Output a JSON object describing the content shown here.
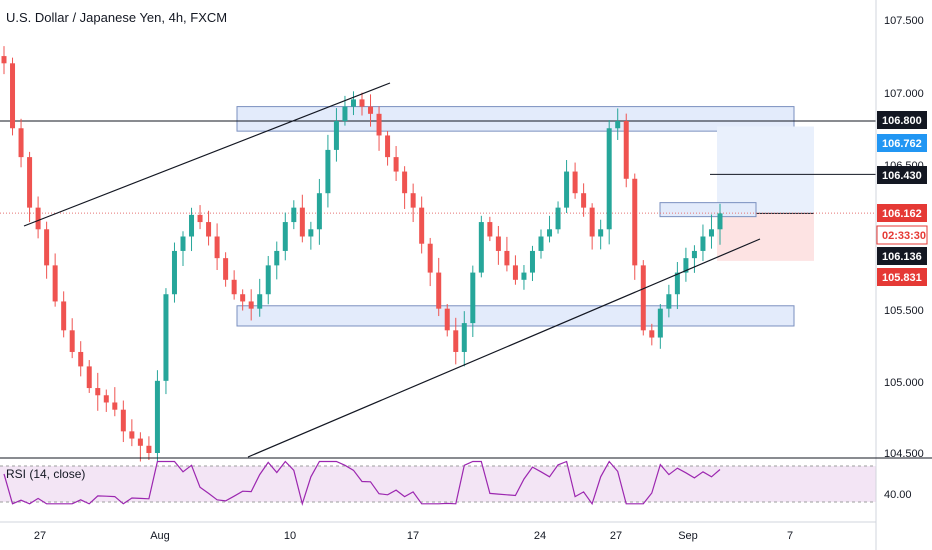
{
  "header": {
    "title": "U.S. Dollar / Japanese Yen, 4h, FXCM"
  },
  "rsi": {
    "label": "RSI (14, close)",
    "levels": [
      30,
      70
    ]
  },
  "colors": {
    "bull": "#26a69a",
    "bear": "#ef5350",
    "rsi_line": "#9c27b0",
    "rsi_band": "#f3e5f5",
    "zone": "#e3ebfb",
    "zone_border": "#7a8fbf",
    "price_tag_red": "#e53935",
    "price_tag_blue": "#2196f3",
    "tag_black": "#131722",
    "target_zone": "#e9f0fc",
    "stop_zone": "#fde3e3"
  },
  "price_axis": {
    "labels": [
      "107.500",
      "107.000",
      "106.500",
      "105.500",
      "105.000",
      "104.500"
    ],
    "tags": [
      {
        "text": "106.800",
        "style": "black"
      },
      {
        "text": "106.762",
        "style": "blue"
      },
      {
        "text": "106.430",
        "style": "black"
      },
      {
        "text": "106.162",
        "style": "red"
      },
      {
        "text": "02:33:30",
        "style": "red"
      },
      {
        "text": "106.136",
        "style": "black"
      },
      {
        "text": "105.831",
        "style": "red"
      }
    ]
  },
  "rsi_axis": {
    "labels": [
      "40.00"
    ]
  },
  "time_axis": {
    "labels": [
      "27",
      "Aug",
      "10",
      "17",
      "24",
      "27",
      "Sep",
      "7"
    ]
  },
  "chart_data": {
    "type": "candlestick",
    "symbol": "USDJPY",
    "interval": "4h",
    "ylim": [
      104.45,
      107.6
    ],
    "close_series": [
      107.2,
      106.75,
      106.55,
      106.2,
      106.05,
      105.8,
      105.55,
      105.35,
      105.2,
      105.1,
      104.95,
      104.9,
      104.85,
      104.8,
      104.65,
      104.6,
      104.55,
      104.5,
      105.0,
      105.6,
      105.9,
      106.0,
      106.15,
      106.1,
      106.0,
      105.85,
      105.7,
      105.6,
      105.55,
      105.5,
      105.6,
      105.8,
      105.9,
      106.1,
      106.2,
      106.0,
      106.05,
      106.3,
      106.6,
      106.8,
      106.9,
      106.95,
      106.9,
      106.85,
      106.7,
      106.55,
      106.45,
      106.3,
      106.2,
      105.95,
      105.75,
      105.5,
      105.35,
      105.2,
      105.4,
      105.75,
      106.1,
      106.0,
      105.9,
      105.8,
      105.7,
      105.75,
      105.9,
      106.0,
      106.05,
      106.2,
      106.45,
      106.3,
      106.2,
      106.0,
      106.05,
      106.75,
      106.8,
      106.4,
      105.8,
      105.35,
      105.3,
      105.5,
      105.6,
      105.75,
      105.85,
      105.9,
      106.0,
      106.05,
      106.16
    ],
    "annotations": [
      {
        "type": "horizontal_line",
        "price": 106.8
      },
      {
        "type": "horizontal_ray",
        "price": 106.43
      },
      {
        "type": "zone",
        "from": 106.73,
        "to": 106.9
      },
      {
        "type": "zone",
        "from": 105.38,
        "to": 105.52
      },
      {
        "type": "long_position",
        "entry": 106.16,
        "target": 106.762,
        "stop": 105.831
      }
    ]
  }
}
